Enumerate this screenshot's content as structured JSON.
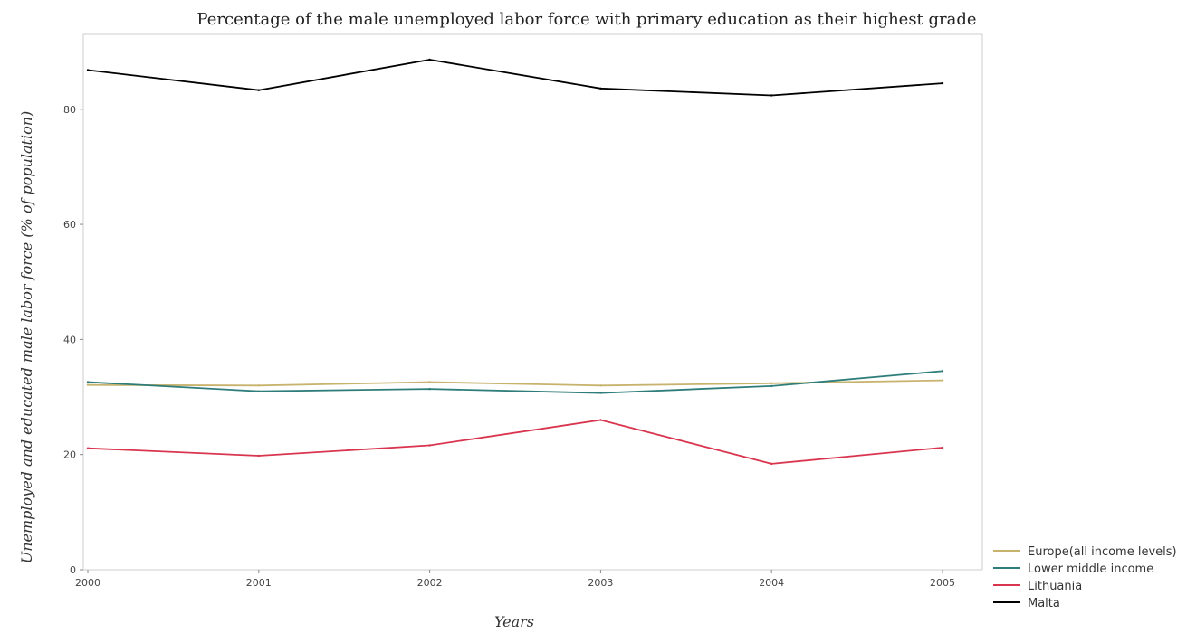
{
  "chart_data": {
    "type": "line",
    "title": "Percentage of the male unemployed labor force with primary education as their highest grade",
    "xlabel": "Years",
    "ylabel": "Unemployed and educated male labor force (% of population)",
    "categories": [
      "2000",
      "2001",
      "2002",
      "2003",
      "2004",
      "2005"
    ],
    "yticks": [
      "0",
      "20",
      "40",
      "60",
      "80"
    ],
    "ylim": [
      0,
      93
    ],
    "grid": false,
    "legend_position": "bottom-right",
    "series": [
      {
        "name": "Europe(all income levels)",
        "color": "#c8b36e",
        "values": [
          32.1,
          32.0,
          32.6,
          32.0,
          32.4,
          32.9
        ]
      },
      {
        "name": "Lower middle income",
        "color": "#2e7d7a",
        "values": [
          32.6,
          31.0,
          31.4,
          30.7,
          31.9,
          34.5
        ]
      },
      {
        "name": "Lithuania",
        "color": "#d9354f",
        "values": [
          21.1,
          19.8,
          21.6,
          26.0,
          18.4,
          21.2
        ]
      },
      {
        "name": "Malta",
        "color": "#000000",
        "values": [
          86.8,
          83.3,
          88.6,
          83.6,
          82.4,
          84.5
        ]
      }
    ]
  }
}
